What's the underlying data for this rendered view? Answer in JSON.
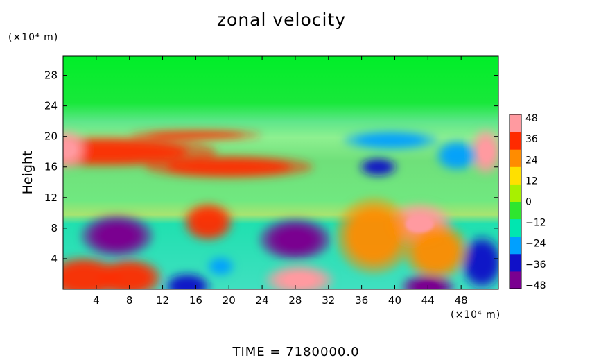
{
  "chart_data": {
    "type": "heatmap",
    "title": "zonal velocity",
    "ylabel": "Height",
    "y_unit": "(×10⁴ m)",
    "x_unit": "(×10⁴ m)",
    "footer": "TIME  =  7180000.0",
    "xlim": [
      0,
      52.5
    ],
    "ylim": [
      0,
      30.5
    ],
    "x_ticks": [
      4,
      8,
      12,
      16,
      20,
      24,
      28,
      32,
      36,
      40,
      44,
      48
    ],
    "y_ticks": [
      4,
      8,
      12,
      16,
      20,
      24,
      28
    ],
    "colorbar": {
      "ticks": [
        48,
        36,
        24,
        12,
        0,
        -12,
        -24,
        -36,
        -48
      ],
      "range": [
        -50,
        50
      ],
      "colors": [
        "#7a0090",
        "#1010c8",
        "#00a0ff",
        "#00e6b0",
        "#2ee62e",
        "#a8f000",
        "#ffe000",
        "#ff8c00",
        "#ff2a00",
        "#ff9aa0"
      ]
    },
    "features": [
      {
        "x": 6.5,
        "y": 7,
        "value": -48
      },
      {
        "x": 28,
        "y": 6.5,
        "value": -48
      },
      {
        "x": 2.5,
        "y": 1.5,
        "value": 36
      },
      {
        "x": 8,
        "y": 1.5,
        "value": 36
      },
      {
        "x": 28.5,
        "y": 1.2,
        "value": 48
      },
      {
        "x": 43,
        "y": 8.5,
        "value": 48
      },
      {
        "x": 44,
        "y": 0.3,
        "value": -48
      },
      {
        "x": 15,
        "y": 0.4,
        "value": -36
      },
      {
        "x": 50.5,
        "y": 3.5,
        "value": -36
      },
      {
        "x": 5,
        "y": 18,
        "value": 36
      },
      {
        "x": 0.5,
        "y": 18.3,
        "value": 48
      },
      {
        "x": 20,
        "y": 16,
        "value": 30
      },
      {
        "x": 51,
        "y": 18,
        "value": 48
      },
      {
        "x": 47.5,
        "y": 17.5,
        "value": -24
      },
      {
        "x": 39.5,
        "y": 19.5,
        "value": -30
      },
      {
        "x": 38,
        "y": 16,
        "value": -36
      },
      {
        "x": 17.5,
        "y": 8.8,
        "value": 36
      },
      {
        "x": 37.5,
        "y": 7,
        "value": 24
      },
      {
        "x": 45,
        "y": 5,
        "value": 24
      },
      {
        "x": 19,
        "y": 3,
        "value": -30
      },
      {
        "x": 16,
        "y": 20.2,
        "value": 30
      }
    ]
  }
}
